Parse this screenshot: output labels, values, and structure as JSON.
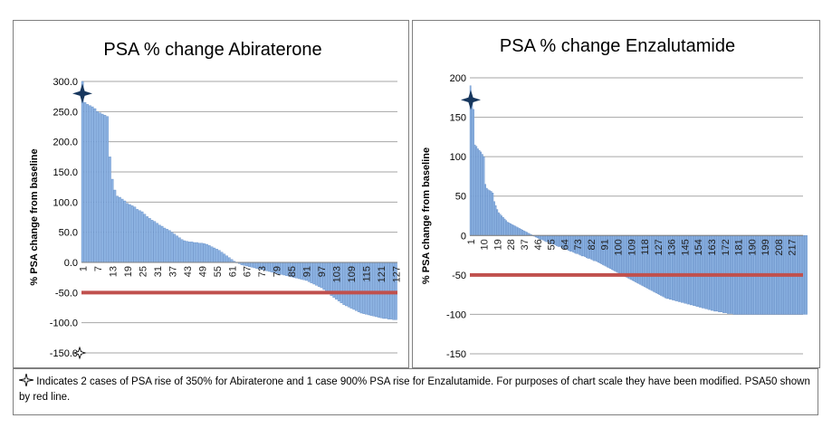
{
  "chart_data": [
    {
      "type": "bar",
      "title": "PSA % change Abiraterone",
      "ylabel": "% PSA change  from baseline",
      "xlabel": "",
      "ylim": [
        -150,
        300
      ],
      "y_ticks": [
        300,
        250,
        200,
        150,
        100,
        50,
        0,
        -50,
        -100,
        -150
      ],
      "y_tick_labels": [
        "300.0",
        "250.0",
        "200.0",
        "150.0",
        "100.0",
        "50.0",
        "0.0",
        "-50.0",
        "-100.0",
        "-150.0"
      ],
      "n_bars": 127,
      "x_tick_labels": [
        "1",
        "7",
        "13",
        "19",
        "25",
        "31",
        "37",
        "43",
        "49",
        "55",
        "61",
        "67",
        "73",
        "79",
        "85",
        "91",
        "97",
        "103",
        "109",
        "115",
        "121",
        "127"
      ],
      "values": [
        300,
        265,
        262,
        260,
        258,
        255,
        250,
        248,
        246,
        244,
        242,
        175,
        138,
        120,
        110,
        108,
        105,
        102,
        98,
        96,
        94,
        92,
        88,
        86,
        84,
        80,
        76,
        73,
        70,
        68,
        65,
        62,
        60,
        57,
        55,
        53,
        50,
        47,
        44,
        41,
        38,
        36,
        35,
        34,
        34,
        33,
        33,
        32,
        32,
        31,
        30,
        28,
        26,
        24,
        22,
        20,
        17,
        14,
        11,
        8,
        5,
        2,
        0,
        -2,
        -4,
        -5,
        -6,
        -7,
        -8,
        -9,
        -10,
        -11,
        -12,
        -13,
        -14,
        -15,
        -16,
        -17,
        -18,
        -19,
        -20,
        -21,
        -22,
        -23,
        -24,
        -25,
        -26,
        -27,
        -28,
        -29,
        -30,
        -32,
        -34,
        -36,
        -38,
        -40,
        -42,
        -45,
        -48,
        -52,
        -55,
        -58,
        -61,
        -64,
        -67,
        -70,
        -72,
        -74,
        -76,
        -78,
        -80,
        -82,
        -84,
        -85,
        -86,
        -87,
        -88,
        -89,
        -90,
        -91,
        -92,
        -93,
        -93,
        -94,
        -94,
        -95,
        -95
      ],
      "reference_line": -50,
      "markers": [
        {
          "index": 1,
          "value": 280
        },
        {
          "index": 1,
          "value": -150
        }
      ],
      "grid": true,
      "bar_color": "#8eb4e3"
    },
    {
      "type": "bar",
      "title": "PSA % change Enzalutamide",
      "ylabel": "% PSA change  from baseline",
      "xlabel": "",
      "ylim": [
        -150,
        200
      ],
      "y_ticks": [
        200,
        150,
        100,
        50,
        0,
        -50,
        -100,
        -150
      ],
      "y_tick_labels": [
        "200",
        "150",
        "100",
        "50",
        "0",
        "-50",
        "-100",
        "-150"
      ],
      "n_bars": 224,
      "x_tick_labels": [
        "1",
        "10",
        "19",
        "28",
        "37",
        "46",
        "55",
        "64",
        "73",
        "82",
        "91",
        "100",
        "109",
        "118",
        "127",
        "136",
        "145",
        "154",
        "163",
        "172",
        "181",
        "190",
        "199",
        "208",
        "217"
      ],
      "values": [
        190,
        175,
        160,
        115,
        113,
        110,
        108,
        106,
        103,
        100,
        65,
        60,
        58,
        57,
        56,
        54,
        43,
        38,
        33,
        29,
        27,
        25,
        23,
        21,
        19,
        17,
        16,
        15,
        14,
        13,
        12,
        11,
        10,
        9,
        8,
        7,
        6,
        5,
        4,
        3,
        2,
        1,
        0,
        -1,
        -2,
        -3,
        -4,
        -5,
        -5,
        -6,
        -7,
        -8,
        -8,
        -9,
        -10,
        -11,
        -11,
        -12,
        -13,
        -14,
        -14,
        -15,
        -16,
        -17,
        -17,
        -18,
        -19,
        -20,
        -20,
        -21,
        -22,
        -23,
        -23,
        -24,
        -25,
        -26,
        -26,
        -27,
        -28,
        -29,
        -29,
        -30,
        -31,
        -32,
        -32,
        -33,
        -34,
        -35,
        -36,
        -37,
        -38,
        -39,
        -40,
        -41,
        -42,
        -43,
        -44,
        -45,
        -46,
        -47,
        -48,
        -49,
        -50,
        -51,
        -52,
        -53,
        -54,
        -55,
        -56,
        -57,
        -58,
        -59,
        -60,
        -61,
        -62,
        -63,
        -64,
        -65,
        -66,
        -67,
        -68,
        -69,
        -70,
        -71,
        -72,
        -73,
        -74,
        -75,
        -76,
        -77,
        -78,
        -79,
        -80,
        -80,
        -81,
        -81,
        -82,
        -82,
        -83,
        -83,
        -84,
        -84,
        -85,
        -85,
        -86,
        -86,
        -87,
        -87,
        -88,
        -88,
        -89,
        -89,
        -90,
        -90,
        -91,
        -91,
        -92,
        -92,
        -93,
        -93,
        -94,
        -94,
        -95,
        -95,
        -96,
        -96,
        -96,
        -97,
        -97,
        -97,
        -98,
        -98,
        -98,
        -99,
        -99,
        -99,
        -99,
        -100,
        -100,
        -100,
        -100,
        -100,
        -100,
        -100,
        -100,
        -100,
        -100,
        -100,
        -100,
        -100,
        -100,
        -100,
        -100,
        -100,
        -100,
        -100,
        -100,
        -100,
        -100,
        -100,
        -100,
        -100,
        -100,
        -100,
        -100,
        -100,
        -100,
        -100,
        -100,
        -100,
        -100,
        -100,
        -100,
        -100,
        -100,
        -100,
        -100,
        -100,
        -100,
        -100,
        -100,
        -100,
        -100,
        -100,
        -100,
        -100,
        -100
      ],
      "reference_line": -50,
      "markers": [
        {
          "index": 1,
          "value": 172
        }
      ],
      "grid": true,
      "bar_color": "#8eb4e3"
    }
  ],
  "footnote": {
    "icon": "four-point-star-icon",
    "text": "Indicates  2 cases of PSA rise of 350% for Abiraterone and 1 case 900% PSA rise for Enzalutamide. For purposes of chart scale they have been modified. PSA50  shown by red line."
  },
  "colors": {
    "bars": "#8eb4e3",
    "bar_edge": "#5b86c2",
    "psa50_line": "#c0504d",
    "grid": "#a6a6a6",
    "marker": "#17375e"
  }
}
